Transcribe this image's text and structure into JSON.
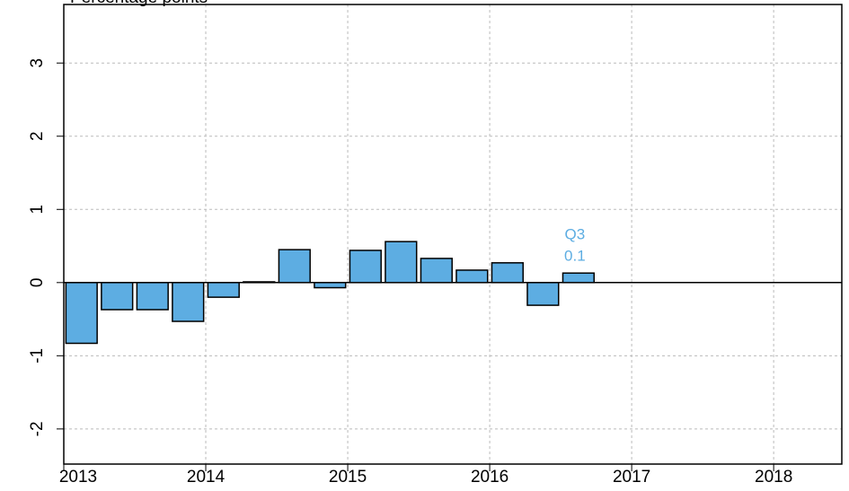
{
  "chart_data": {
    "type": "bar",
    "title": "Percentage points",
    "x": [
      2013.125,
      2013.375,
      2013.625,
      2013.875,
      2014.125,
      2014.375,
      2014.625,
      2014.875,
      2015.125,
      2015.375,
      2015.625,
      2015.875,
      2016.125,
      2016.375,
      2016.625
    ],
    "values": [
      -0.83,
      -0.37,
      -0.37,
      -0.53,
      -0.2,
      0.01,
      0.45,
      -0.07,
      0.44,
      0.56,
      0.33,
      0.17,
      0.27,
      -0.31,
      0.13
    ],
    "color": "#5dade2",
    "annotations": [
      "Q3",
      "0.1"
    ],
    "xlim": [
      2013,
      2018.48
    ],
    "xticks": [
      2013,
      2014,
      2015,
      2016,
      2017,
      2018
    ],
    "ylim": [
      -2.48,
      3.8
    ],
    "yticks": [
      -2,
      -1,
      0,
      1,
      2,
      3
    ],
    "grid": true
  }
}
